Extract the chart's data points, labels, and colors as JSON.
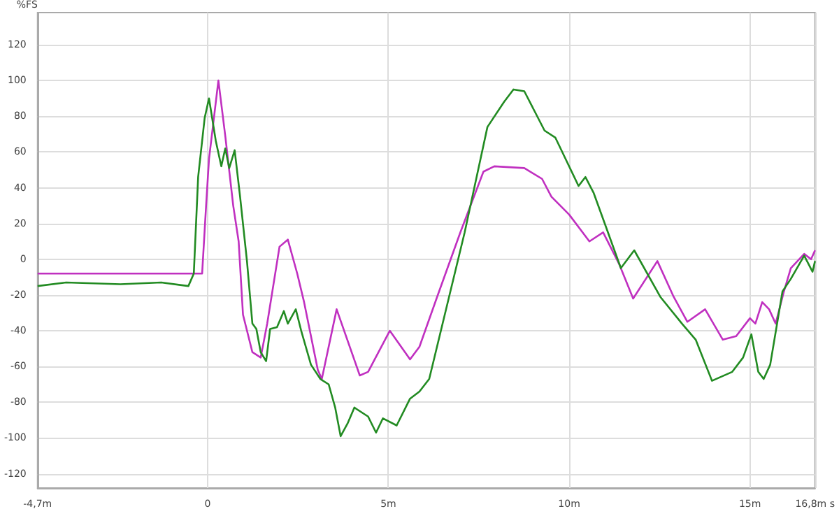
{
  "chart_data": {
    "type": "line",
    "ylabel": "%FS",
    "xlim": [
      -4.7,
      16.8
    ],
    "xticks": [
      {
        "value": -4.7,
        "label": "-4,7m"
      },
      0,
      {
        "value": 5,
        "label": "5m"
      },
      {
        "value": 10,
        "label": "10m"
      },
      {
        "value": 15,
        "label": "15m"
      },
      {
        "value": 16.8,
        "label": "16,8m s"
      }
    ],
    "ylim": [
      -128,
      138
    ],
    "yticks": [
      -120,
      -100,
      -80,
      -60,
      -40,
      -20,
      0,
      20,
      40,
      60,
      80,
      100,
      120
    ],
    "grid": true,
    "marker": "none",
    "line_style": "solid",
    "series": [
      {
        "color": "#c030c0",
        "x": [
          -4.7,
          -0.38,
          -0.15,
          -0.04,
          0.04,
          0.3,
          0.49,
          0.71,
          0.86,
          0.98,
          1.24,
          1.47,
          1.65,
          1.99,
          2.22,
          2.48,
          2.67,
          3.05,
          3.16,
          3.57,
          4.21,
          4.44,
          5.04,
          5.6,
          5.86,
          6.35,
          6.99,
          7.63,
          7.93,
          8.76,
          9.25,
          9.51,
          10.0,
          10.56,
          10.94,
          11.39,
          11.77,
          12.44,
          12.89,
          13.27,
          13.76,
          14.25,
          14.62,
          15.0,
          15.15,
          15.34,
          15.53,
          15.71,
          15.94,
          16.13,
          16.5,
          16.69,
          16.8
        ],
        "values": [
          -8,
          -8,
          -8,
          30,
          56,
          100,
          69,
          30,
          10,
          -31,
          -52,
          -55,
          -36,
          7,
          11,
          -8,
          -24,
          -62,
          -67,
          -28,
          -65,
          -63,
          -40,
          -56,
          -49,
          -21,
          15,
          49,
          52,
          51,
          45,
          35,
          25,
          10,
          15,
          -3,
          -22,
          -1,
          -21,
          -35,
          -28,
          -45,
          -43,
          -33,
          -36,
          -24,
          -28,
          -36,
          -18,
          -5,
          3,
          0,
          5
        ]
      },
      {
        "color": "#228b22",
        "x": [
          -4.7,
          -3.91,
          -2.41,
          -1.28,
          -0.53,
          -0.38,
          -0.26,
          -0.08,
          0.04,
          0.23,
          0.38,
          0.49,
          0.6,
          0.75,
          0.9,
          1.09,
          1.24,
          1.35,
          1.47,
          1.62,
          1.73,
          1.92,
          2.11,
          2.22,
          2.44,
          2.59,
          2.86,
          3.12,
          3.35,
          3.53,
          3.68,
          3.87,
          4.06,
          4.44,
          4.66,
          4.85,
          5.23,
          5.6,
          5.86,
          6.13,
          6.62,
          7.11,
          7.74,
          8.2,
          8.46,
          8.76,
          9.32,
          9.62,
          10.26,
          10.45,
          10.68,
          11.02,
          11.43,
          11.8,
          12.52,
          13.12,
          13.5,
          13.95,
          14.51,
          14.81,
          15.04,
          15.23,
          15.38,
          15.56,
          15.9,
          16.13,
          16.5,
          16.73,
          16.8
        ],
        "values": [
          -15,
          -13,
          -14,
          -13,
          -15,
          -8,
          46,
          79,
          90,
          66,
          52,
          62,
          51,
          61,
          35,
          -1,
          -36,
          -39,
          -52,
          -57,
          -39,
          -38,
          -29,
          -36,
          -28,
          -40,
          -59,
          -67,
          -70,
          -83,
          -99,
          -92,
          -83,
          -88,
          -97,
          -89,
          -93,
          -78,
          -74,
          -67,
          -26,
          15,
          74,
          88,
          95,
          94,
          72,
          68,
          41,
          46,
          37,
          18,
          -5,
          5,
          -21,
          -36,
          -45,
          -68,
          -63,
          -55,
          -42,
          -63,
          -67,
          -59,
          -18,
          -11,
          2,
          -7,
          -1
        ]
      }
    ]
  }
}
